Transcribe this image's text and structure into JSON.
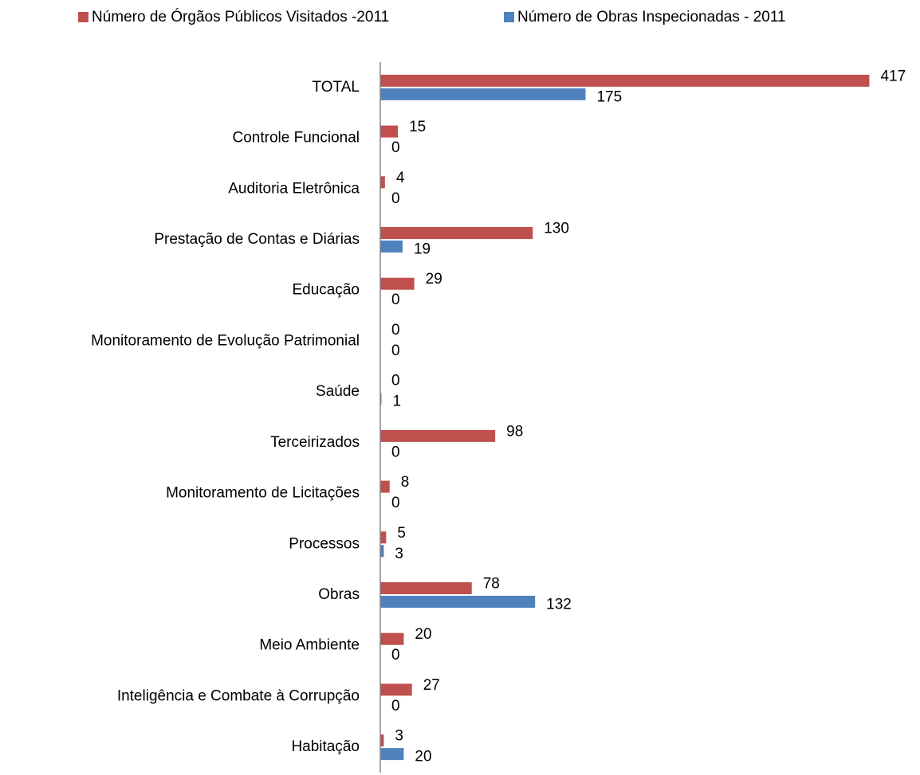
{
  "chart_data": {
    "type": "hbar",
    "categories": [
      "TOTAL",
      "Controle Funcional",
      "Auditoria Eletrônica",
      "Prestação de Contas e Diárias",
      "Educação",
      "Monitoramento de Evolução Patrimonial",
      "Saúde",
      "Terceirizados",
      "Monitoramento de Licitações",
      "Processos",
      "Obras",
      "Meio Ambiente",
      "Inteligência e Combate à Corrupção",
      "Habitação"
    ],
    "series": [
      {
        "name": "Número de Órgãos Públicos Visitados -2011",
        "color": "#c0504d",
        "values": [
          417,
          15,
          4,
          130,
          29,
          0,
          0,
          98,
          8,
          5,
          78,
          20,
          27,
          3
        ]
      },
      {
        "name": "Número de Obras Inspecionadas -  2011",
        "color": "#4f81bd",
        "values": [
          175,
          0,
          0,
          19,
          0,
          0,
          1,
          0,
          0,
          3,
          132,
          0,
          0,
          20
        ]
      }
    ],
    "xlim": [
      0,
      450
    ],
    "legend": "top"
  }
}
